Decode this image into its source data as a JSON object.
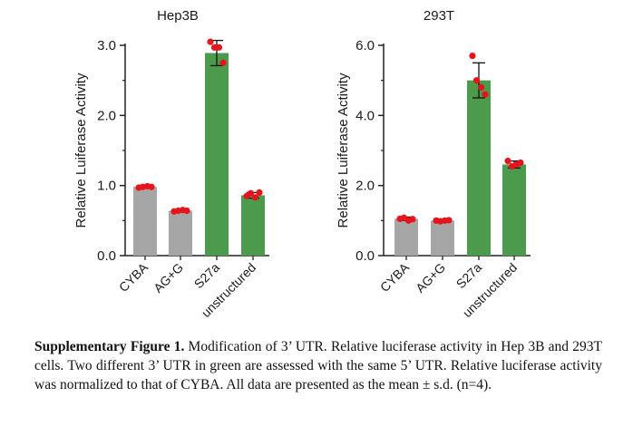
{
  "figure": {
    "caption_label": "Supplementary Figure 1.",
    "caption_text": " Modification of 3’ UTR. Relative luciferase activity in Hep 3B and 293T cells. Two different 3’ UTR in green are assessed with the same 5’ UTR. Relative luciferase activity was normalized to that of CYBA. All data are presented as the mean ± s.d. (n=4)."
  },
  "colors": {
    "gray_bar": "#a6a6a6",
    "green_bar": "#4c9a4c",
    "point": "#e8141b",
    "axis": "#222222"
  },
  "chart_data": [
    {
      "type": "bar",
      "title": "Hep3B",
      "ylabel": "Relative Luiferase Activity",
      "xlabel": "",
      "categories": [
        "CYBA",
        "AG+G",
        "S27a",
        "unstructured"
      ],
      "values": [
        0.98,
        0.64,
        2.89,
        0.86
      ],
      "errors": [
        0.02,
        0.02,
        0.18,
        0.04
      ],
      "bar_colors": [
        "gray",
        "gray",
        "green",
        "green"
      ],
      "points": [
        [
          0.97,
          0.98,
          0.99,
          0.98
        ],
        [
          0.63,
          0.64,
          0.65,
          0.64
        ],
        [
          3.05,
          2.97,
          2.97,
          2.75
        ],
        [
          0.85,
          0.89,
          0.83,
          0.9
        ]
      ],
      "ylim": [
        0,
        3.0
      ],
      "yticks": [
        0.0,
        1.0,
        2.0,
        3.0
      ],
      "ytick_labels": [
        "0.0",
        "1.0",
        "2.0",
        "3.0"
      ],
      "grid": false
    },
    {
      "type": "bar",
      "title": "293T",
      "ylabel": "Relative Luiferase Activity",
      "xlabel": "",
      "categories": [
        "CYBA",
        "AG+G",
        "S27a",
        "unstructured"
      ],
      "values": [
        1.05,
        1.0,
        5.0,
        2.6
      ],
      "errors": [
        0.05,
        0.04,
        0.5,
        0.1
      ],
      "bar_colors": [
        "gray",
        "gray",
        "green",
        "green"
      ],
      "points": [
        [
          1.05,
          1.08,
          1.0,
          1.04
        ],
        [
          1.0,
          0.98,
          1.0,
          1.01
        ],
        [
          5.7,
          5.0,
          4.8,
          4.6
        ],
        [
          2.7,
          2.55,
          2.6,
          2.65
        ]
      ],
      "ylim": [
        0,
        6.0
      ],
      "yticks": [
        0.0,
        2.0,
        4.0,
        6.0
      ],
      "ytick_labels": [
        "0.0",
        "2.0",
        "4.0",
        "6.0"
      ],
      "grid": false
    }
  ]
}
